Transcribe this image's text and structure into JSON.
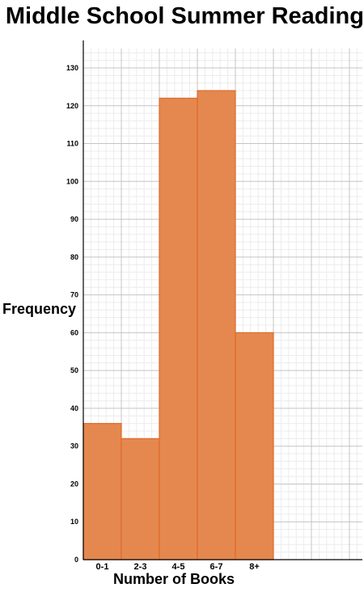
{
  "chart_data": {
    "type": "bar",
    "title": "Middle School Summer Reading",
    "xlabel": "Number of Books",
    "ylabel": "Frequency",
    "categories": [
      "0-1",
      "2-3",
      "4-5",
      "6-7",
      "8+"
    ],
    "values": [
      36,
      32,
      122,
      124,
      60
    ],
    "ylim": [
      0,
      130
    ],
    "yticks": [
      0,
      10,
      20,
      30,
      40,
      50,
      60,
      70,
      80,
      90,
      100,
      110,
      120,
      130
    ],
    "grid": true,
    "bar_color": "#e4884f",
    "bar_edge_color": "#e06a2a"
  }
}
